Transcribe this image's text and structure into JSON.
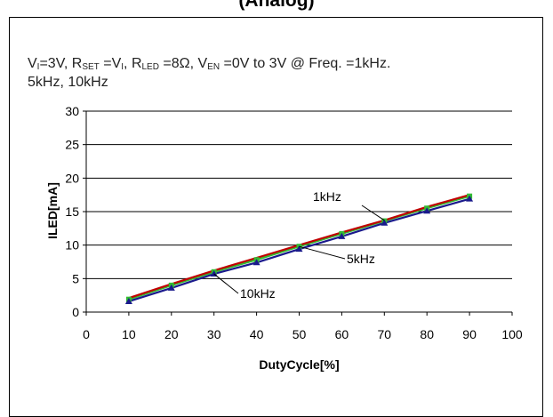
{
  "page": {
    "heading_fragment": "(Analog)"
  },
  "caption": {
    "line1_parts": [
      "V",
      "I",
      "=3V,  R",
      "SET",
      " =V",
      "I",
      ", R",
      "LED",
      " =8Ω,   V",
      "EN",
      " =0V to 3V @ Freq. =1kHz."
    ],
    "line2": "5kHz, 10kHz"
  },
  "chart_data": {
    "type": "line",
    "title": "",
    "xlabel": "DutyCycle[%]",
    "ylabel": "ILED[mA]",
    "xlim": [
      0,
      100
    ],
    "ylim": [
      0,
      30
    ],
    "xticks": [
      0,
      10,
      20,
      30,
      40,
      50,
      60,
      70,
      80,
      90,
      100
    ],
    "yticks": [
      0,
      5,
      10,
      15,
      20,
      25,
      30
    ],
    "grid": "horizontal",
    "legend": "none",
    "x": [
      10,
      20,
      30,
      40,
      50,
      60,
      70,
      80,
      90
    ],
    "series": [
      {
        "name": "1kHz",
        "color": "#c00000",
        "marker": "none",
        "values": [
          2.1,
          4.2,
          6.2,
          8.1,
          10.0,
          11.9,
          13.7,
          15.7,
          17.5
        ]
      },
      {
        "name": "5kHz",
        "color": "#33bb33",
        "marker": "square",
        "values": [
          1.9,
          4.0,
          6.0,
          7.8,
          9.8,
          11.7,
          13.6,
          15.5,
          17.3
        ]
      },
      {
        "name": "10kHz",
        "color": "#1a1a8c",
        "marker": "triangle",
        "values": [
          1.6,
          3.6,
          5.7,
          7.4,
          9.4,
          11.3,
          13.3,
          15.1,
          16.9
        ]
      }
    ],
    "annotations": [
      {
        "text": "1kHz",
        "series": "1kHz",
        "at_x": 70
      },
      {
        "text": "5kHz",
        "series": "5kHz",
        "at_x": 50
      },
      {
        "text": "10kHz",
        "series": "10kHz",
        "at_x": 30
      }
    ]
  }
}
